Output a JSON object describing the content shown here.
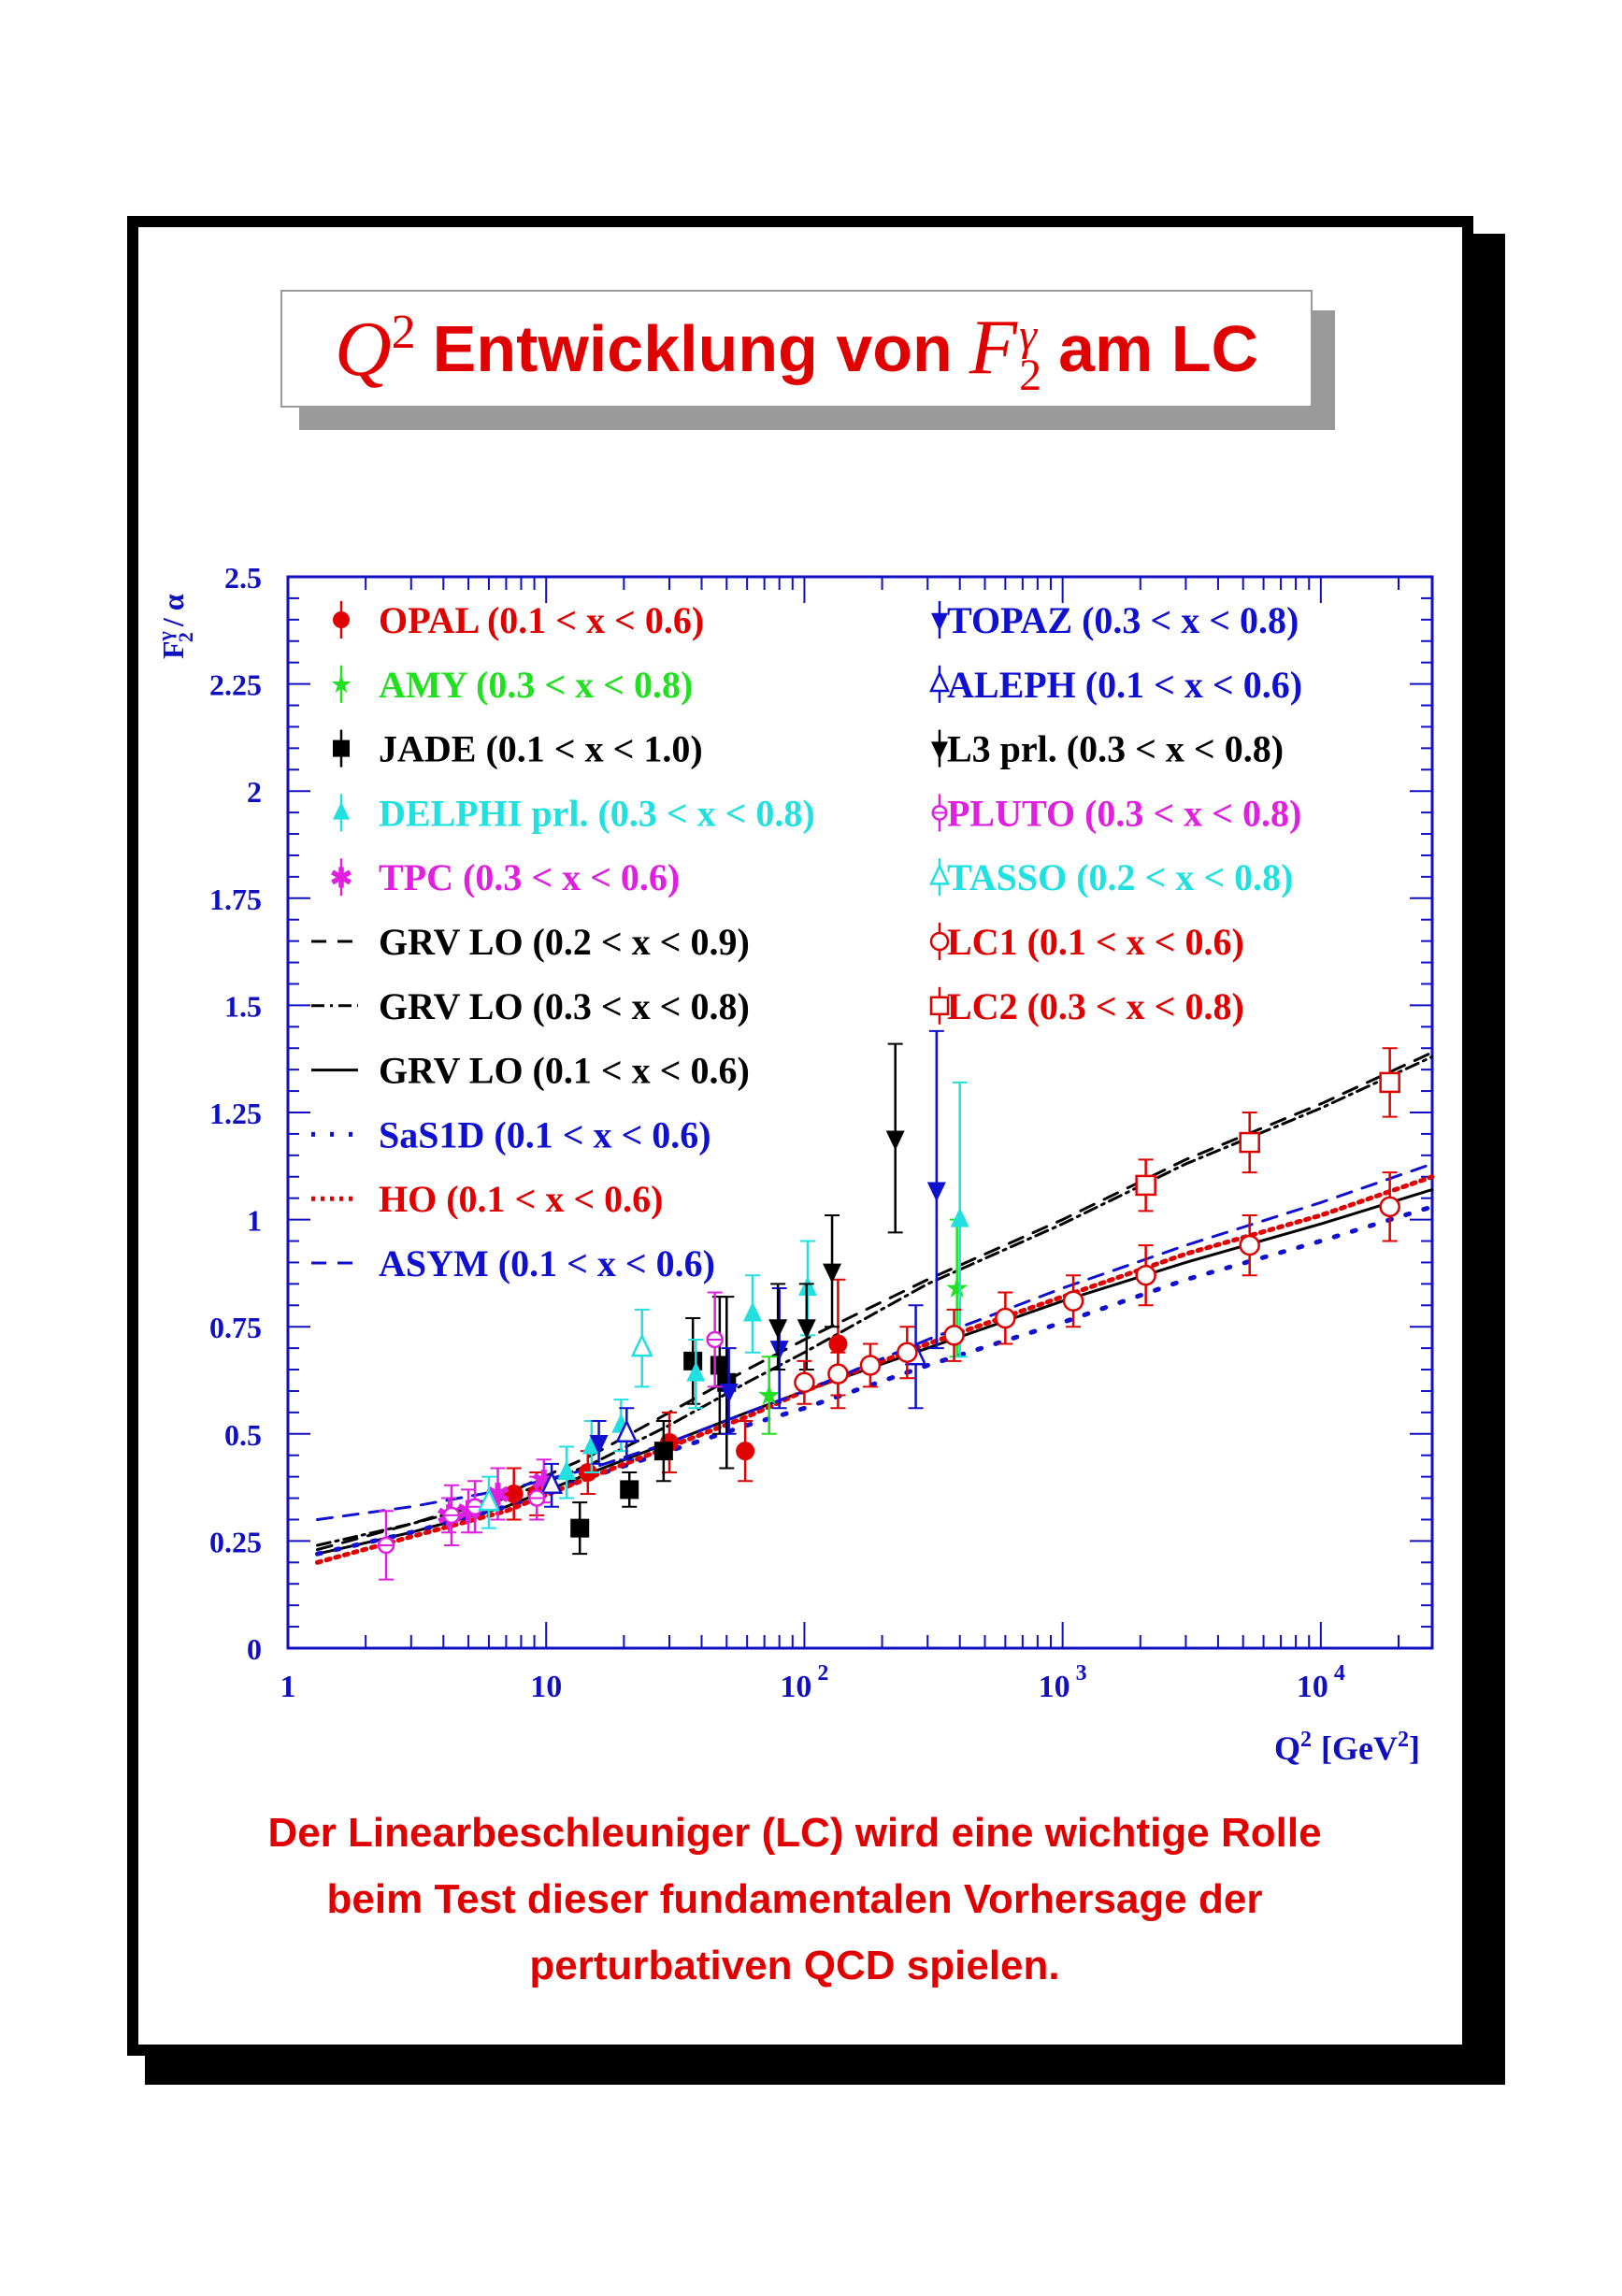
{
  "title": {
    "q2": "Q",
    "q2_sup": "2",
    "part1": "Entwicklung von",
    "f2": "F",
    "f2_sup": "γ",
    "f2_sub": "2",
    "part2": "am LC"
  },
  "caption": {
    "line1": "Der Linearbeschleuniger (LC) wird eine wichtige Rolle",
    "line2": "beim Test dieser fundamentalen Vorhersage der",
    "line3": "perturbativen QCD spielen."
  },
  "chart_data": {
    "type": "scatter",
    "x_scale": "log",
    "xlim": [
      1,
      27000
    ],
    "ylim": [
      0,
      2.5
    ],
    "xlabel": "Q",
    "xlabel_sup": "2",
    "xlabel_unit": "[GeV",
    "xlabel_unit_sup": "2",
    "xlabel_unit_close": "]",
    "ylabel": "F",
    "ylabel_sup": "γ",
    "ylabel_sub": "2",
    "ylabel_tail": "/ α",
    "y_ticks": [
      "0",
      "0.25",
      "0.5",
      "0.75",
      "1",
      "1.25",
      "1.5",
      "1.75",
      "2",
      "2.25",
      "2.5"
    ],
    "x_ticks": [
      {
        "base": "1",
        "exp": ""
      },
      {
        "base": "10",
        "exp": ""
      },
      {
        "base": "10",
        "exp": "2"
      },
      {
        "base": "10",
        "exp": "3"
      },
      {
        "base": "10",
        "exp": "4"
      }
    ],
    "legend": [
      {
        "label": "OPAL (0.1 < x < 0.6)",
        "color": "#e00000",
        "marker": "circle-filled"
      },
      {
        "label": "AMY (0.3 < x < 0.8)",
        "color": "#20e020",
        "marker": "star"
      },
      {
        "label": "JADE (0.1 < x < 1.0)",
        "color": "#000000",
        "marker": "square-filled"
      },
      {
        "label": "DELPHI prl. (0.3 < x < 0.8)",
        "color": "#20e0e0",
        "marker": "triangle-up-filled"
      },
      {
        "label": "TPC (0.3 < x < 0.6)",
        "color": "#e020e0",
        "marker": "asterisk"
      },
      {
        "label": "GRV LO (0.2 < x < 0.9)",
        "color": "#000000",
        "marker": "line-dashed"
      },
      {
        "label": "GRV LO (0.3 < x < 0.8)",
        "color": "#000000",
        "marker": "line-dashdot"
      },
      {
        "label": "GRV LO (0.1 < x < 0.6)",
        "color": "#000000",
        "marker": "line-solid"
      },
      {
        "label": "SaS1D (0.1 < x < 0.6)",
        "color": "#1010d0",
        "marker": "line-dotted-sparse"
      },
      {
        "label": "HO (0.1 < x < 0.6)",
        "color": "#e00000",
        "marker": "line-dotted"
      },
      {
        "label": "ASYM (0.1 < x < 0.6)",
        "color": "#1010d0",
        "marker": "line-dashed"
      },
      {
        "label": "TOPAZ (0.3 < x < 0.8)",
        "color": "#1010d0",
        "marker": "triangle-down-filled"
      },
      {
        "label": "ALEPH (0.1 < x < 0.6)",
        "color": "#1010d0",
        "marker": "triangle-up-open"
      },
      {
        "label": "L3 prl. (0.3 < x < 0.8)",
        "color": "#000000",
        "marker": "triangle-down-filled"
      },
      {
        "label": "PLUTO (0.3 < x < 0.8)",
        "color": "#e020e0",
        "marker": "cross-open"
      },
      {
        "label": "TASSO (0.2 < x < 0.8)",
        "color": "#20e0e0",
        "marker": "triangle-up-open"
      },
      {
        "label": "LC1 (0.1 < x < 0.6)",
        "color": "#e00000",
        "marker": "circle-open"
      },
      {
        "label": "LC2 (0.3 < x < 0.8)",
        "color": "#e00000",
        "marker": "square-open"
      }
    ],
    "series": [
      {
        "name": "OPAL (0.1 < x < 0.6)",
        "color": "#e00000",
        "marker": "circle-filled",
        "points": [
          [
            7.5,
            0.36,
            0.06
          ],
          [
            9.2,
            0.36,
            0.05
          ],
          [
            14.5,
            0.41,
            0.05
          ],
          [
            30,
            0.48,
            0.07
          ],
          [
            59,
            0.46,
            0.07
          ],
          [
            135,
            0.71,
            0.15
          ]
        ]
      },
      {
        "name": "AMY (0.3 < x < 0.8)",
        "color": "#20e020",
        "marker": "star",
        "points": [
          [
            73,
            0.59,
            0.09
          ],
          [
            390,
            0.84,
            0.16
          ]
        ]
      },
      {
        "name": "JADE (0.1 < x < 1.0)",
        "color": "#000000",
        "marker": "square-filled",
        "points": [
          [
            13.5,
            0.28,
            0.06
          ],
          [
            21,
            0.37,
            0.04
          ],
          [
            28.5,
            0.46,
            0.07
          ],
          [
            37,
            0.67,
            0.1
          ],
          [
            47,
            0.66,
            0.16
          ],
          [
            50,
            0.62,
            0.2
          ]
        ]
      },
      {
        "name": "DELPHI prl. (0.3 < x < 0.8)",
        "color": "#20e0e0",
        "marker": "triangle-up-filled",
        "points": [
          [
            12,
            0.41,
            0.06
          ],
          [
            15,
            0.47,
            0.06
          ],
          [
            19.5,
            0.52,
            0.06
          ],
          [
            38,
            0.64,
            0.08
          ],
          [
            63,
            0.78,
            0.09
          ],
          [
            103,
            0.84,
            0.11
          ],
          [
            400,
            1.0,
            0.32
          ]
        ]
      },
      {
        "name": "TPC (0.3 < x < 0.6)",
        "color": "#e020e0",
        "marker": "asterisk",
        "points": [
          [
            4.2,
            0.31,
            0.04
          ],
          [
            5.0,
            0.32,
            0.05
          ],
          [
            6.5,
            0.36,
            0.06
          ],
          [
            9.8,
            0.39,
            0.05
          ]
        ]
      },
      {
        "name": "TOPAZ (0.3 < x < 0.8)",
        "color": "#1010d0",
        "marker": "triangle-down-filled",
        "points": [
          [
            16,
            0.48,
            0.05
          ],
          [
            51,
            0.6,
            0.1
          ],
          [
            80,
            0.7,
            0.14
          ],
          [
            325,
            1.07,
            0.37
          ]
        ]
      },
      {
        "name": "ALEPH (0.1 < x < 0.6)",
        "color": "#1010d0",
        "marker": "triangle-up-open",
        "points": [
          [
            10.5,
            0.38,
            0.05
          ],
          [
            20.5,
            0.5,
            0.06
          ],
          [
            270,
            0.68,
            0.12
          ]
        ]
      },
      {
        "name": "L3 prl. (0.3 < x < 0.8)",
        "color": "#000000",
        "marker": "triangle-down-filled",
        "points": [
          [
            79,
            0.75,
            0.1
          ],
          [
            102,
            0.75,
            0.1
          ],
          [
            128,
            0.88,
            0.13
          ],
          [
            225,
            1.19,
            0.22
          ]
        ]
      },
      {
        "name": "PLUTO (0.3 < x < 0.8)",
        "color": "#e020e0",
        "marker": "cross-open",
        "points": [
          [
            2.4,
            0.24,
            0.08
          ],
          [
            4.3,
            0.31,
            0.07
          ],
          [
            5.3,
            0.33,
            0.06
          ],
          [
            9.2,
            0.35,
            0.05
          ],
          [
            45,
            0.72,
            0.11
          ]
        ]
      },
      {
        "name": "TASSO (0.2 < x < 0.8)",
        "color": "#20e0e0",
        "marker": "triangle-up-open",
        "points": [
          [
            6.0,
            0.34,
            0.06
          ],
          [
            23.5,
            0.7,
            0.09
          ]
        ]
      },
      {
        "name": "LC1 (0.1 < x < 0.6)",
        "color": "#e00000",
        "marker": "circle-open",
        "points": [
          [
            100,
            0.62,
            0.05
          ],
          [
            135,
            0.64,
            0.05
          ],
          [
            180,
            0.66,
            0.05
          ],
          [
            250,
            0.69,
            0.06
          ],
          [
            380,
            0.73,
            0.06
          ],
          [
            600,
            0.77,
            0.06
          ],
          [
            1100,
            0.81,
            0.06
          ],
          [
            2100,
            0.87,
            0.07
          ],
          [
            5300,
            0.94,
            0.07
          ],
          [
            18500,
            1.03,
            0.08
          ]
        ]
      },
      {
        "name": "LC2 (0.3 < x < 0.8)",
        "color": "#e00000",
        "marker": "square-open",
        "points": [
          [
            2100,
            1.08,
            0.06
          ],
          [
            5300,
            1.18,
            0.07
          ],
          [
            18500,
            1.32,
            0.08
          ]
        ]
      }
    ],
    "curves": [
      {
        "name": "GRV LO (0.2 < x < 0.9)",
        "color": "#000000",
        "style": "dashed",
        "points": [
          [
            1.3,
            0.23
          ],
          [
            3,
            0.29
          ],
          [
            7,
            0.36
          ],
          [
            15,
            0.45
          ],
          [
            30,
            0.55
          ],
          [
            60,
            0.65
          ],
          [
            100,
            0.72
          ],
          [
            300,
            0.86
          ],
          [
            1000,
            1.0
          ],
          [
            3000,
            1.14
          ],
          [
            10000,
            1.27
          ],
          [
            27000,
            1.39
          ]
        ]
      },
      {
        "name": "GRV LO (0.3 < x < 0.8)",
        "color": "#000000",
        "style": "dashdot",
        "points": [
          [
            1.3,
            0.24
          ],
          [
            3,
            0.29
          ],
          [
            7,
            0.35
          ],
          [
            15,
            0.43
          ],
          [
            30,
            0.52
          ],
          [
            60,
            0.62
          ],
          [
            100,
            0.69
          ],
          [
            300,
            0.85
          ],
          [
            1000,
            0.99
          ],
          [
            3000,
            1.13
          ],
          [
            10000,
            1.26
          ],
          [
            27000,
            1.38
          ]
        ]
      },
      {
        "name": "GRV LO (0.1 < x < 0.6)",
        "color": "#000000",
        "style": "solid",
        "points": [
          [
            1.3,
            0.22
          ],
          [
            3,
            0.27
          ],
          [
            7,
            0.33
          ],
          [
            15,
            0.41
          ],
          [
            30,
            0.48
          ],
          [
            60,
            0.55
          ],
          [
            100,
            0.6
          ],
          [
            300,
            0.7
          ],
          [
            1000,
            0.81
          ],
          [
            3000,
            0.9
          ],
          [
            10000,
            0.99
          ],
          [
            27000,
            1.07
          ]
        ]
      },
      {
        "name": "SaS1D (0.1 < x < 0.6)",
        "color": "#1010d0",
        "style": "dotted-sparse",
        "points": [
          [
            1.3,
            0.22
          ],
          [
            3,
            0.27
          ],
          [
            7,
            0.33
          ],
          [
            15,
            0.4
          ],
          [
            30,
            0.46
          ],
          [
            60,
            0.52
          ],
          [
            100,
            0.56
          ],
          [
            300,
            0.66
          ],
          [
            1000,
            0.76
          ],
          [
            3000,
            0.86
          ],
          [
            10000,
            0.95
          ],
          [
            27000,
            1.03
          ]
        ]
      },
      {
        "name": "HO (0.1 < x < 0.6)",
        "color": "#e00000",
        "style": "dotted",
        "points": [
          [
            1.3,
            0.2
          ],
          [
            3,
            0.26
          ],
          [
            7,
            0.32
          ],
          [
            15,
            0.4
          ],
          [
            30,
            0.47
          ],
          [
            60,
            0.54
          ],
          [
            100,
            0.6
          ],
          [
            300,
            0.71
          ],
          [
            1000,
            0.82
          ],
          [
            3000,
            0.92
          ],
          [
            10000,
            1.01
          ],
          [
            27000,
            1.1
          ]
        ]
      },
      {
        "name": "ASYM (0.1 < x < 0.6)",
        "color": "#1010d0",
        "style": "dashed",
        "points": [
          [
            1.3,
            0.3
          ],
          [
            3,
            0.33
          ],
          [
            7,
            0.37
          ],
          [
            15,
            0.42
          ],
          [
            30,
            0.48
          ],
          [
            60,
            0.55
          ],
          [
            100,
            0.6
          ],
          [
            300,
            0.72
          ],
          [
            1000,
            0.84
          ],
          [
            3000,
            0.94
          ],
          [
            10000,
            1.04
          ],
          [
            27000,
            1.13
          ]
        ]
      }
    ]
  }
}
